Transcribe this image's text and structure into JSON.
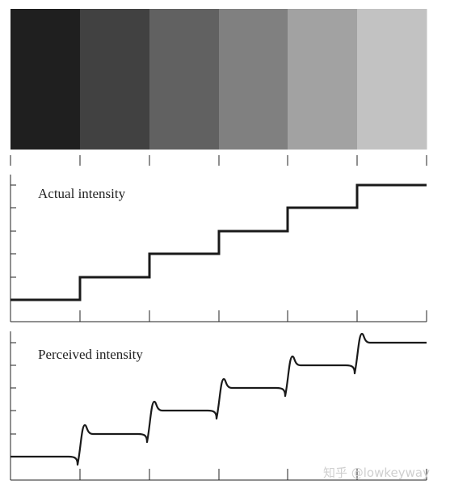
{
  "strip": {
    "band_colors": [
      "#1f1f1f",
      "#414141",
      "#616161",
      "#808080",
      "#a2a2a2",
      "#c2c2c2"
    ]
  },
  "actual_panel": {
    "label": "Actual intensity",
    "levels": [
      1,
      2,
      3,
      4,
      5,
      6
    ]
  },
  "perceived_panel": {
    "label": "Perceived intensity",
    "levels": [
      1,
      2,
      3,
      4,
      5,
      6
    ],
    "effect": "mach-band overshoot/undershoot at each edge"
  },
  "watermark": {
    "text": "知乎 @lowkeyway"
  }
}
